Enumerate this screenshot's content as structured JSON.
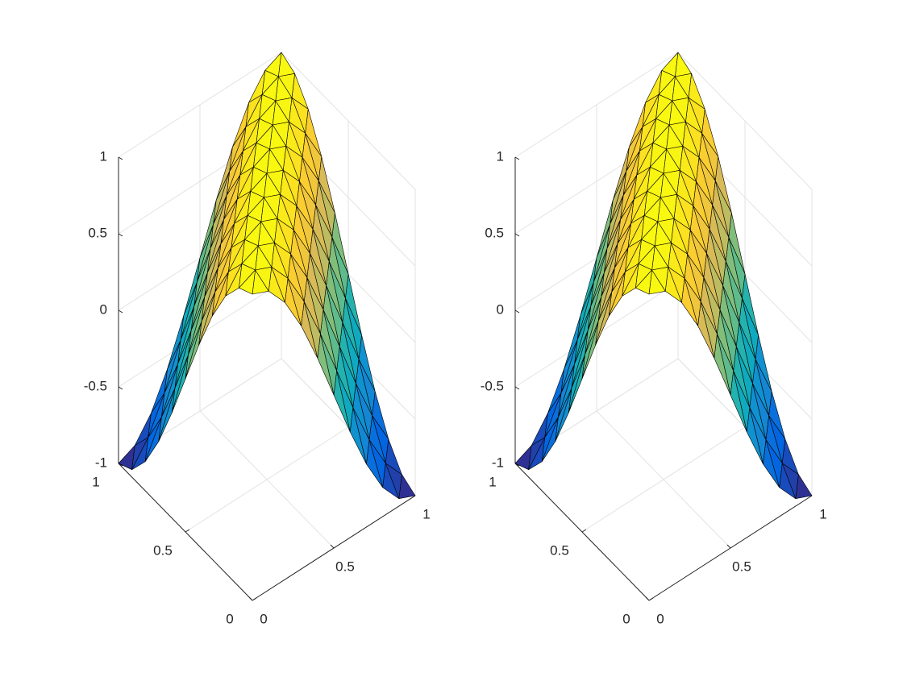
{
  "chart_data": [
    {
      "type": "surface",
      "colormap": "parula",
      "edge_color": "#000000",
      "grid": true,
      "x": [
        0,
        0.1,
        0.2,
        0.3,
        0.4,
        0.5,
        0.6,
        0.7,
        0.8,
        0.9,
        1
      ],
      "y": [
        0,
        0.1,
        0.2,
        0.3,
        0.4,
        0.5,
        0.6,
        0.7,
        0.8,
        0.9,
        1
      ],
      "z": [
        [
          1,
          0.951,
          0.809,
          0.588,
          0.309,
          0,
          -0.309,
          -0.588,
          -0.809,
          -0.951,
          -1
        ],
        [
          0.951,
          1,
          0.951,
          0.809,
          0.588,
          0.309,
          0,
          -0.309,
          -0.588,
          -0.809,
          -0.951
        ],
        [
          0.809,
          0.951,
          1,
          0.951,
          0.809,
          0.588,
          0.309,
          0,
          -0.309,
          -0.588,
          -0.809
        ],
        [
          0.588,
          0.809,
          0.951,
          1,
          0.951,
          0.809,
          0.588,
          0.309,
          0,
          -0.309,
          -0.588
        ],
        [
          0.309,
          0.588,
          0.809,
          0.951,
          1,
          0.951,
          0.809,
          0.588,
          0.309,
          0,
          -0.309
        ],
        [
          0,
          0.309,
          0.588,
          0.809,
          0.951,
          1,
          0.951,
          0.809,
          0.588,
          0.309,
          0
        ],
        [
          -0.309,
          0,
          0.309,
          0.588,
          0.809,
          0.951,
          1,
          0.951,
          0.809,
          0.588,
          0.309
        ],
        [
          -0.588,
          -0.309,
          0,
          0.309,
          0.588,
          0.809,
          0.951,
          1,
          0.951,
          0.809,
          0.588
        ],
        [
          -0.809,
          -0.588,
          -0.309,
          0,
          0.309,
          0.588,
          0.809,
          0.951,
          1,
          0.951,
          0.809
        ],
        [
          -0.951,
          -0.809,
          -0.588,
          -0.309,
          0,
          0.309,
          0.588,
          0.809,
          0.951,
          1,
          0.951
        ],
        [
          -1,
          -0.951,
          -0.809,
          -0.588,
          -0.309,
          0,
          0.309,
          0.588,
          0.809,
          0.951,
          1
        ]
      ],
      "xlim": [
        0,
        1
      ],
      "ylim": [
        0,
        1
      ],
      "zlim": [
        -1,
        1
      ],
      "xticks": [
        0,
        0.5,
        1
      ],
      "yticks": [
        0,
        0.5,
        1
      ],
      "zticks": [
        -1,
        -0.5,
        0,
        0.5,
        1
      ]
    },
    {
      "type": "surface",
      "colormap": "parula",
      "edge_color": "#000000",
      "grid": true,
      "x": [
        0,
        0.1,
        0.2,
        0.3,
        0.4,
        0.5,
        0.6,
        0.7,
        0.8,
        0.9,
        1
      ],
      "y": [
        0,
        0.1,
        0.2,
        0.3,
        0.4,
        0.5,
        0.6,
        0.7,
        0.8,
        0.9,
        1
      ],
      "z": [
        [
          1,
          0.951,
          0.809,
          0.588,
          0.309,
          0,
          -0.309,
          -0.588,
          -0.809,
          -0.951,
          -1
        ],
        [
          0.951,
          1,
          0.951,
          0.809,
          0.588,
          0.309,
          0,
          -0.309,
          -0.588,
          -0.809,
          -0.951
        ],
        [
          0.809,
          0.951,
          1,
          0.951,
          0.809,
          0.588,
          0.309,
          0,
          -0.309,
          -0.588,
          -0.809
        ],
        [
          0.588,
          0.809,
          0.951,
          1,
          0.951,
          0.809,
          0.588,
          0.309,
          0,
          -0.309,
          -0.588
        ],
        [
          0.309,
          0.588,
          0.809,
          0.951,
          1,
          0.951,
          0.809,
          0.588,
          0.309,
          0,
          -0.309
        ],
        [
          0,
          0.309,
          0.588,
          0.809,
          0.951,
          1,
          0.951,
          0.809,
          0.588,
          0.309,
          0
        ],
        [
          -0.309,
          0,
          0.309,
          0.588,
          0.809,
          0.951,
          1,
          0.951,
          0.809,
          0.588,
          0.309
        ],
        [
          -0.588,
          -0.309,
          0,
          0.309,
          0.588,
          0.809,
          0.951,
          1,
          0.951,
          0.809,
          0.588
        ],
        [
          -0.809,
          -0.588,
          -0.309,
          0,
          0.309,
          0.588,
          0.809,
          0.951,
          1,
          0.951,
          0.809
        ],
        [
          -0.951,
          -0.809,
          -0.588,
          -0.309,
          0,
          0.309,
          0.588,
          0.809,
          0.951,
          1,
          0.951
        ],
        [
          -1,
          -0.951,
          -0.809,
          -0.588,
          -0.309,
          0,
          0.309,
          0.588,
          0.809,
          0.951,
          1
        ]
      ],
      "xlim": [
        0,
        1
      ],
      "ylim": [
        0,
        1
      ],
      "zlim": [
        -1,
        1
      ],
      "xticks": [
        0,
        0.5,
        1
      ],
      "yticks": [
        0,
        0.5,
        1
      ],
      "zticks": [
        -1,
        -0.5,
        0,
        0.5,
        1
      ]
    }
  ]
}
